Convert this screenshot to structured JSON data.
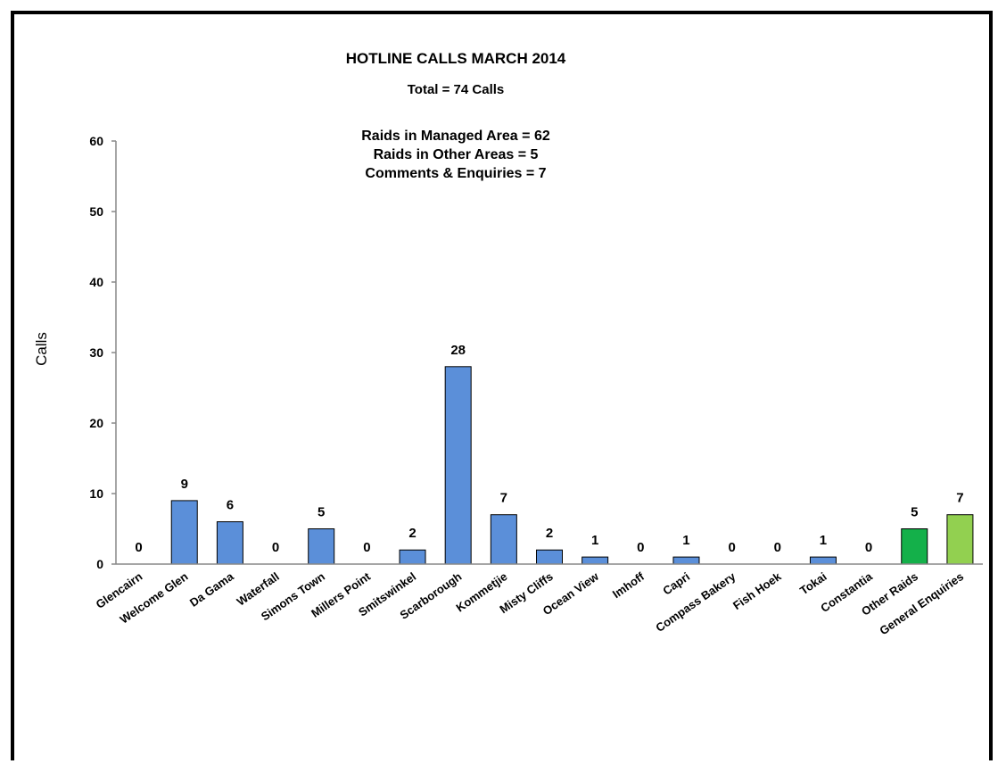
{
  "chart_data": {
    "type": "bar",
    "title": "HOTLINE CALLS MARCH 2014",
    "subtitle": "Total = 74 Calls",
    "annotations": [
      "Raids in Managed Area = 62",
      "Raids in Other Areas = 5",
      "Comments & Enquiries = 7"
    ],
    "xlabel": "",
    "ylabel": "Calls",
    "ylim": [
      0,
      60
    ],
    "yticks": [
      "0",
      "10",
      "20",
      "30",
      "40",
      "50",
      "60"
    ],
    "grid": false,
    "categories": [
      "Glencairn",
      "Welcome Glen",
      "Da Gama",
      "Waterfall",
      "Simons Town",
      "Millers Point",
      "Smitswinkel",
      "Scarborough",
      "Kommetjie",
      "Misty Cliffs",
      "Ocean View",
      "Imhoff",
      "Capri",
      "Compass Bakery",
      "Fish Hoek",
      "Tokai",
      "Constantia",
      "Other Raids",
      "General Enquiries"
    ],
    "values": [
      0,
      9,
      6,
      0,
      5,
      0,
      2,
      28,
      7,
      2,
      1,
      0,
      1,
      0,
      0,
      1,
      0,
      5,
      7
    ],
    "data_labels": [
      "0",
      "9",
      "6",
      "0",
      "5",
      "0",
      "2",
      "28",
      "7",
      "2",
      "1",
      "0",
      "1",
      "0",
      "0",
      "1",
      "0",
      "5",
      "7"
    ],
    "colors": {
      "default": "#5b8fd9",
      "Other Raids": "#14b04a",
      "General Enquiries": "#92d050",
      "outline": "#000000"
    }
  }
}
